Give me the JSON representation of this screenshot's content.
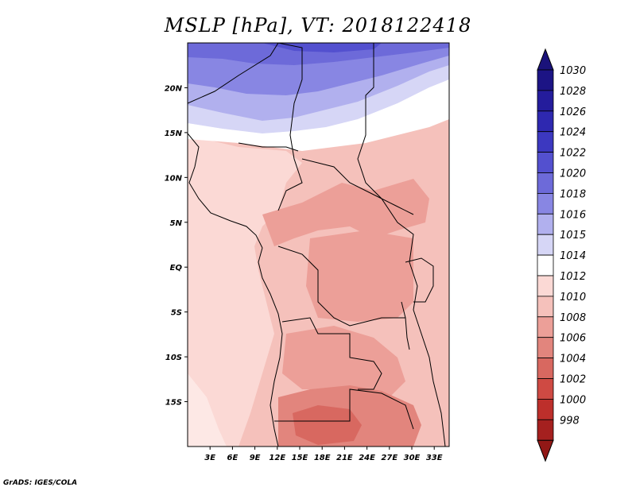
{
  "title": "MSLP [hPa], VT: 2018122418",
  "footer": "GrADS: IGES/COLA",
  "colorbar": {
    "levels": [
      {
        "label": "1030",
        "color": "#1c1485"
      },
      {
        "label": "1028",
        "color": "#241c9c"
      },
      {
        "label": "1026",
        "color": "#2e28b0"
      },
      {
        "label": "1024",
        "color": "#3c38c0"
      },
      {
        "label": "1022",
        "color": "#5350cf"
      },
      {
        "label": "1020",
        "color": "#6d6ad9"
      },
      {
        "label": "1018",
        "color": "#8886e3"
      },
      {
        "label": "1016",
        "color": "#b1b0ee"
      },
      {
        "label": "1015",
        "color": "#d6d6f6"
      },
      {
        "label": "1014",
        "color": "#ffffff"
      },
      {
        "label": "1012",
        "color": "#fbd9d5"
      },
      {
        "label": "1010",
        "color": "#f5c1bb"
      },
      {
        "label": "1008",
        "color": "#ec9f98"
      },
      {
        "label": "1006",
        "color": "#e2857d"
      },
      {
        "label": "1004",
        "color": "#d86860"
      },
      {
        "label": "1002",
        "color": "#cf4a43"
      },
      {
        "label": "1000",
        "color": "#bd2f2b"
      },
      {
        "label": "998",
        "color": "#a5201f"
      }
    ],
    "top_arrow_color": "#1a127a",
    "bottom_arrow_color": "#921816"
  },
  "map": {
    "lon_range": [
      0,
      35
    ],
    "lat_range": [
      -20,
      25
    ],
    "x_ticks": [
      "3E",
      "6E",
      "9E",
      "12E",
      "15E",
      "18E",
      "21E",
      "24E",
      "27E",
      "30E",
      "33E"
    ],
    "y_ticks": [
      "20N",
      "15N",
      "10N",
      "5N",
      "EQ",
      "5S",
      "10S",
      "15S"
    ]
  }
}
